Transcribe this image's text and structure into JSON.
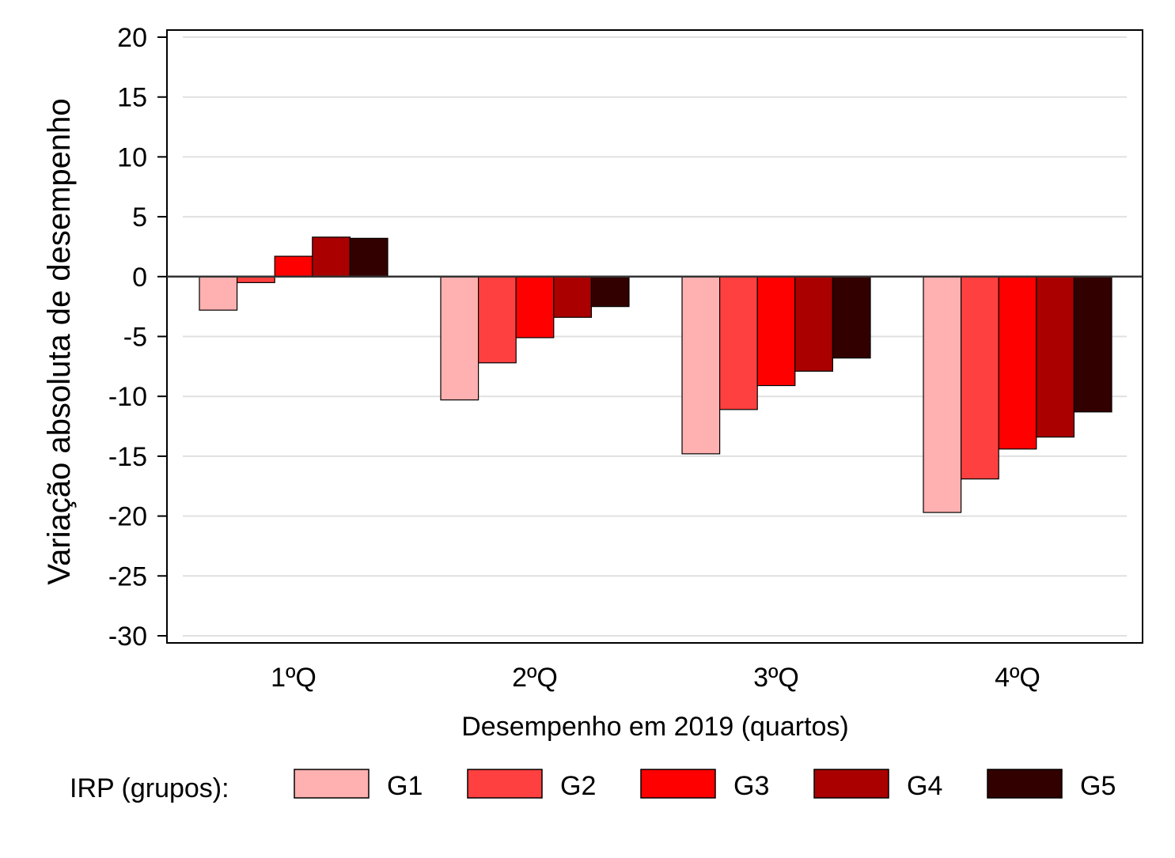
{
  "chart_data": {
    "type": "bar",
    "title": "",
    "xlabel": "Desempenho em 2019 (quartos)",
    "ylabel": "Variação absoluta de desempenho",
    "categories": [
      "1ºQ",
      "2ºQ",
      "3ºQ",
      "4ºQ"
    ],
    "ylim": [
      -30,
      20
    ],
    "yticks": [
      20,
      15,
      10,
      5,
      0,
      -5,
      -10,
      -15,
      -20,
      -25,
      -30
    ],
    "ytick_labels": [
      "20",
      "15",
      "10",
      "5",
      "0",
      "-5",
      "-10",
      "-15",
      "-20",
      "-25",
      "-30"
    ],
    "grid": "horizontal",
    "legend": {
      "title": "IRP (grupos):",
      "placement": "bottom"
    },
    "series": [
      {
        "name": "G1",
        "color": "#ffb0b0",
        "values": [
          -2.8,
          -10.3,
          -14.8,
          -19.7
        ]
      },
      {
        "name": "G2",
        "color": "#ff4040",
        "values": [
          -0.5,
          -7.2,
          -11.1,
          -16.9
        ]
      },
      {
        "name": "G3",
        "color": "#ff0000",
        "values": [
          1.7,
          -5.1,
          -9.1,
          -14.4
        ]
      },
      {
        "name": "G4",
        "color": "#aa0000",
        "values": [
          3.3,
          -3.4,
          -7.9,
          -13.4
        ]
      },
      {
        "name": "G5",
        "color": "#330000",
        "values": [
          3.2,
          -2.5,
          -6.8,
          -11.3
        ]
      }
    ]
  }
}
